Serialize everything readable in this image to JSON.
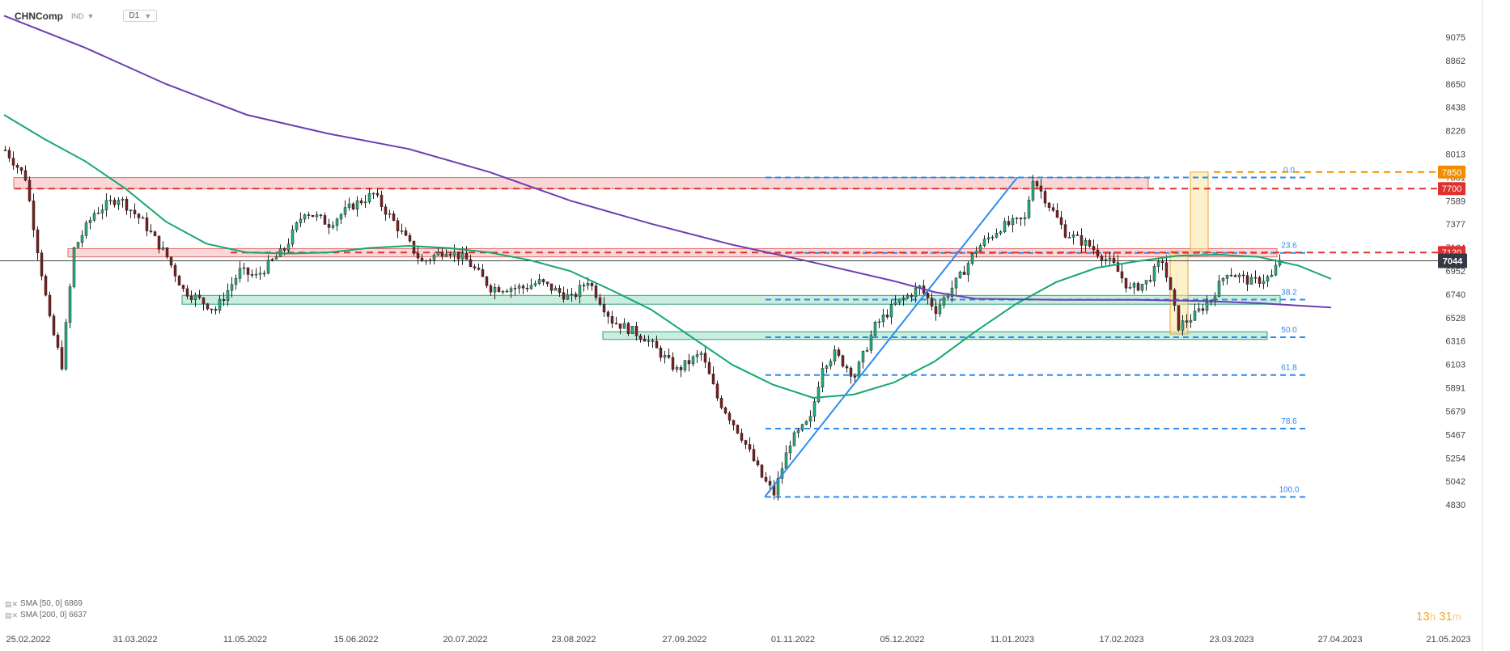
{
  "header": {
    "symbol": "CHNComp",
    "exchange": "IND",
    "timeframe": "D1"
  },
  "indicators": [
    {
      "label": "SMA [50, 0] 6869",
      "color": "#16a76f"
    },
    {
      "label": "SMA [200, 0] 6637",
      "color": "#6b3fb0"
    }
  ],
  "countdown": {
    "hours": "13",
    "h_unit": "h",
    "minutes": "31",
    "m_unit": "m"
  },
  "chart_data": {
    "type": "candlestick",
    "y_range": [
      4830,
      9073
    ],
    "y_ticks": [
      9075,
      8862,
      8650,
      8438,
      8226,
      8013,
      7801,
      7589,
      7377,
      7164,
      6952,
      6740,
      6528,
      6316,
      6103,
      5891,
      5679,
      5467,
      5254,
      5042,
      4830
    ],
    "x_labels": [
      "25.02.2022",
      "31.03.2022",
      "11.05.2022",
      "15.06.2022",
      "20.07.2022",
      "23.08.2022",
      "27.09.2022",
      "01.11.2022",
      "05.12.2022",
      "11.01.2023",
      "17.02.2023",
      "23.03.2023",
      "27.04.2023",
      "21.05.2023"
    ],
    "last_price": {
      "value": 7044,
      "label": "7044"
    },
    "price_tags": [
      {
        "value": 7850,
        "label": "7850",
        "color": "#f28c00"
      },
      {
        "value": 7700,
        "label": "7700",
        "color": "#e0302f"
      },
      {
        "value": 7120,
        "label": "7120",
        "color": "#e0302f"
      }
    ],
    "fib_levels": [
      {
        "label": "0.0",
        "value": 7801
      },
      {
        "label": "23.6",
        "value": 7116
      },
      {
        "label": "38.2",
        "value": 6692
      },
      {
        "label": "50.0",
        "value": 6350
      },
      {
        "label": "61.8",
        "value": 6007
      },
      {
        "label": "78.6",
        "value": 5520
      },
      {
        "label": "100.0",
        "value": 4900
      }
    ],
    "zones": [
      {
        "kind": "resistance",
        "from": 7700,
        "to": 7800
      },
      {
        "kind": "resistance",
        "from": 7080,
        "to": 7155
      },
      {
        "kind": "support",
        "from": 6650,
        "to": 6730
      },
      {
        "kind": "support",
        "from": 6330,
        "to": 6400
      }
    ],
    "series": [
      {
        "name": "SMA [50, 0]",
        "points": [
          [
            0,
            8370
          ],
          [
            50,
            8150
          ],
          [
            100,
            7950
          ],
          [
            150,
            7700
          ],
          [
            200,
            7400
          ],
          [
            250,
            7200
          ],
          [
            300,
            7120
          ],
          [
            350,
            7110
          ],
          [
            400,
            7120
          ],
          [
            450,
            7160
          ],
          [
            500,
            7180
          ],
          [
            550,
            7160
          ],
          [
            600,
            7120
          ],
          [
            650,
            7050
          ],
          [
            700,
            6950
          ],
          [
            750,
            6780
          ],
          [
            800,
            6600
          ],
          [
            850,
            6350
          ],
          [
            900,
            6100
          ],
          [
            950,
            5920
          ],
          [
            1000,
            5800
          ],
          [
            1050,
            5830
          ],
          [
            1100,
            5940
          ],
          [
            1150,
            6130
          ],
          [
            1200,
            6400
          ],
          [
            1250,
            6650
          ],
          [
            1300,
            6850
          ],
          [
            1350,
            6980
          ],
          [
            1400,
            7040
          ],
          [
            1450,
            7090
          ],
          [
            1500,
            7100
          ],
          [
            1550,
            7080
          ],
          [
            1600,
            7000
          ],
          [
            1640,
            6880
          ]
        ]
      },
      {
        "name": "SMA [200, 0]",
        "points": [
          [
            0,
            9270
          ],
          [
            100,
            8980
          ],
          [
            200,
            8650
          ],
          [
            300,
            8370
          ],
          [
            400,
            8200
          ],
          [
            500,
            8060
          ],
          [
            600,
            7850
          ],
          [
            700,
            7590
          ],
          [
            800,
            7380
          ],
          [
            900,
            7190
          ],
          [
            1000,
            7030
          ],
          [
            1100,
            6860
          ],
          [
            1150,
            6760
          ],
          [
            1200,
            6700
          ],
          [
            1300,
            6690
          ],
          [
            1400,
            6690
          ],
          [
            1480,
            6680
          ],
          [
            1550,
            6660
          ],
          [
            1640,
            6620
          ]
        ]
      }
    ]
  }
}
